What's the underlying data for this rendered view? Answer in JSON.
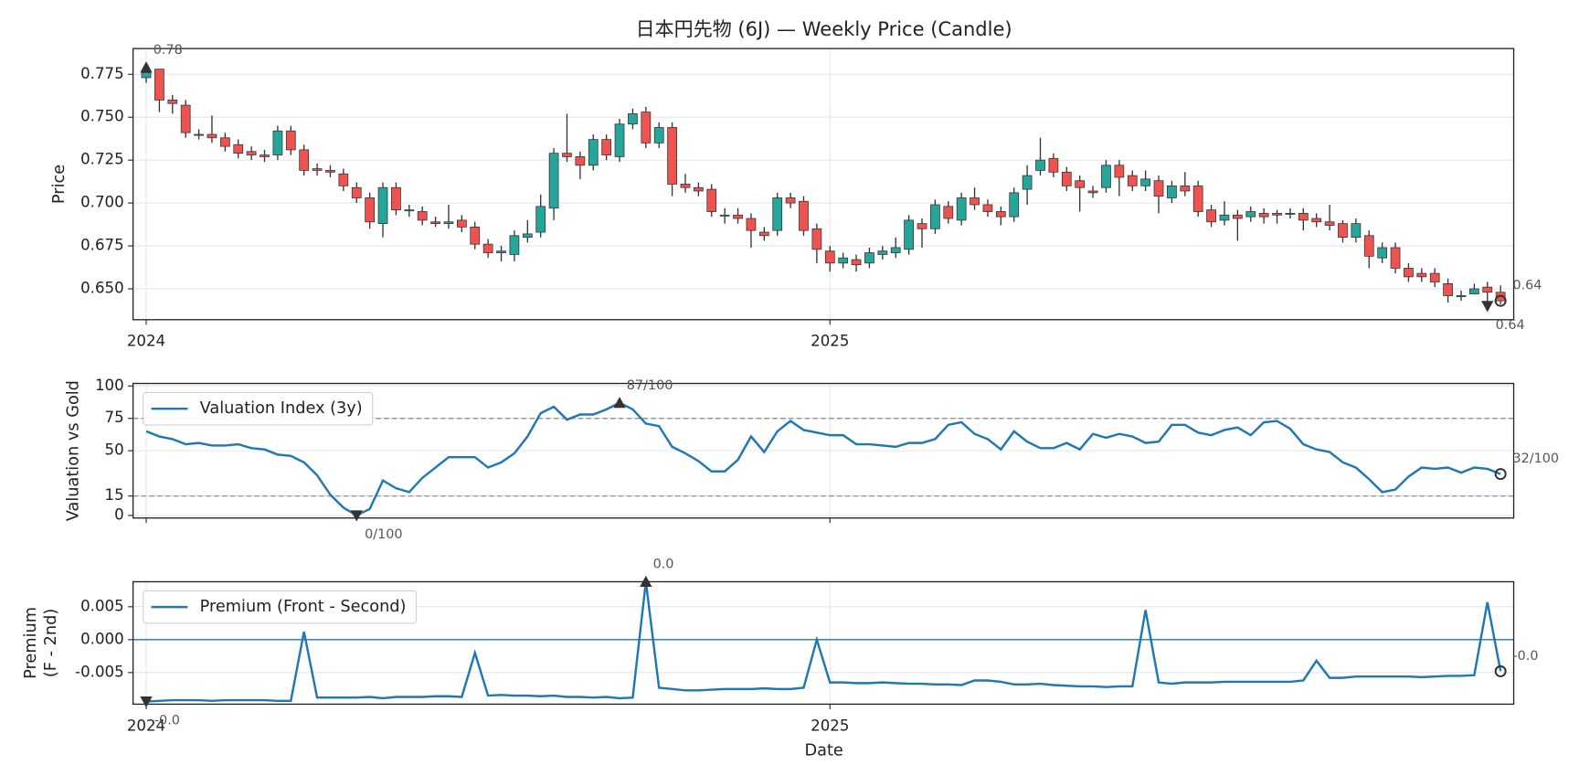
{
  "chart_data": [
    {
      "type": "candlestick",
      "title": "日本円先物 (6J) — Weekly Price (Candle)",
      "ylabel": [
        "Price"
      ],
      "categories": [
        "2024",
        null,
        null,
        null,
        null,
        null,
        null,
        null,
        null,
        null,
        null,
        null,
        null,
        null,
        null,
        null,
        null,
        null,
        null,
        null,
        null,
        null,
        null,
        null,
        null,
        null,
        null,
        null,
        null,
        null,
        null,
        null,
        null,
        null,
        null,
        null,
        null,
        null,
        null,
        null,
        null,
        null,
        null,
        null,
        null,
        null,
        null,
        null,
        null,
        null,
        null,
        null,
        "2025",
        null,
        null,
        null,
        null,
        null,
        null,
        null,
        null,
        null,
        null,
        null,
        null,
        null,
        null,
        null,
        null,
        null,
        null,
        null,
        null,
        null,
        null,
        null,
        null,
        null,
        null,
        null,
        null,
        null,
        null,
        null,
        null,
        null,
        null,
        null,
        null,
        null,
        null,
        null,
        null,
        null,
        null,
        null,
        null,
        null,
        null,
        null,
        null,
        null,
        null,
        null
      ],
      "open": [
        0.773,
        0.778,
        0.76,
        0.757,
        0.74,
        0.74,
        0.738,
        0.734,
        0.73,
        0.728,
        0.728,
        0.742,
        0.731,
        0.72,
        0.719,
        0.717,
        0.709,
        0.703,
        0.688,
        0.709,
        0.696,
        0.695,
        0.689,
        0.688,
        0.69,
        0.686,
        0.676,
        0.671,
        0.67,
        0.68,
        0.683,
        0.697,
        0.729,
        0.727,
        0.722,
        0.737,
        0.727,
        0.746,
        0.753,
        0.735,
        0.744,
        0.711,
        0.709,
        0.708,
        0.693,
        0.693,
        0.691,
        0.683,
        0.684,
        0.703,
        0.701,
        0.685,
        0.672,
        0.665,
        0.667,
        0.665,
        0.67,
        0.671,
        0.673,
        0.688,
        0.685,
        0.698,
        0.69,
        0.703,
        0.699,
        0.695,
        0.692,
        0.708,
        0.719,
        0.726,
        0.718,
        0.713,
        0.707,
        0.709,
        0.722,
        0.716,
        0.71,
        0.713,
        0.703,
        0.71,
        0.71,
        0.696,
        0.69,
        0.693,
        0.692,
        0.694,
        0.694,
        0.694,
        0.694,
        0.691,
        0.689,
        0.688,
        0.68,
        0.681,
        0.668,
        0.674,
        0.662,
        0.659,
        0.659,
        0.653,
        0.646,
        0.647,
        0.651,
        0.648
      ],
      "high": [
        0.779,
        0.778,
        0.763,
        0.76,
        0.743,
        0.751,
        0.741,
        0.737,
        0.733,
        0.731,
        0.745,
        0.745,
        0.734,
        0.723,
        0.722,
        0.72,
        0.712,
        0.706,
        0.712,
        0.712,
        0.699,
        0.698,
        0.692,
        0.699,
        0.693,
        0.689,
        0.679,
        0.675,
        0.684,
        0.69,
        0.705,
        0.732,
        0.752,
        0.73,
        0.74,
        0.74,
        0.749,
        0.755,
        0.756,
        0.747,
        0.747,
        0.717,
        0.712,
        0.711,
        0.697,
        0.697,
        0.694,
        0.686,
        0.706,
        0.706,
        0.704,
        0.688,
        0.675,
        0.671,
        0.67,
        0.674,
        0.675,
        0.68,
        0.693,
        0.691,
        0.702,
        0.701,
        0.706,
        0.709,
        0.702,
        0.698,
        0.709,
        0.722,
        0.738,
        0.729,
        0.721,
        0.716,
        0.71,
        0.725,
        0.725,
        0.719,
        0.719,
        0.716,
        0.713,
        0.718,
        0.713,
        0.699,
        0.701,
        0.696,
        0.698,
        0.697,
        0.696,
        0.697,
        0.697,
        0.694,
        0.699,
        0.69,
        0.691,
        0.684,
        0.677,
        0.677,
        0.665,
        0.662,
        0.662,
        0.656,
        0.649,
        0.653,
        0.654,
        0.652
      ],
      "low": [
        0.77,
        0.753,
        0.752,
        0.738,
        0.737,
        0.735,
        0.73,
        0.726,
        0.725,
        0.724,
        0.725,
        0.728,
        0.716,
        0.716,
        0.715,
        0.707,
        0.7,
        0.685,
        0.68,
        0.693,
        0.692,
        0.687,
        0.686,
        0.685,
        0.683,
        0.673,
        0.668,
        0.666,
        0.666,
        0.677,
        0.68,
        0.69,
        0.724,
        0.714,
        0.719,
        0.725,
        0.724,
        0.743,
        0.732,
        0.732,
        0.704,
        0.706,
        0.704,
        0.692,
        0.688,
        0.688,
        0.674,
        0.678,
        0.681,
        0.697,
        0.681,
        0.665,
        0.66,
        0.662,
        0.66,
        0.662,
        0.667,
        0.668,
        0.67,
        0.674,
        0.682,
        0.688,
        0.687,
        0.696,
        0.692,
        0.687,
        0.689,
        0.699,
        0.716,
        0.715,
        0.707,
        0.695,
        0.703,
        0.706,
        0.704,
        0.707,
        0.707,
        0.694,
        0.7,
        0.704,
        0.692,
        0.686,
        0.687,
        0.678,
        0.689,
        0.688,
        0.688,
        0.691,
        0.684,
        0.686,
        0.684,
        0.677,
        0.677,
        0.662,
        0.665,
        0.659,
        0.654,
        0.654,
        0.651,
        0.642,
        0.643,
        0.647,
        0.64,
        0.641
      ],
      "close": [
        0.776,
        0.76,
        0.758,
        0.741,
        0.74,
        0.738,
        0.733,
        0.729,
        0.728,
        0.727,
        0.742,
        0.731,
        0.719,
        0.719,
        0.718,
        0.71,
        0.703,
        0.689,
        0.709,
        0.696,
        0.696,
        0.69,
        0.688,
        0.689,
        0.686,
        0.676,
        0.671,
        0.672,
        0.681,
        0.682,
        0.698,
        0.729,
        0.727,
        0.722,
        0.737,
        0.728,
        0.746,
        0.752,
        0.735,
        0.744,
        0.711,
        0.709,
        0.707,
        0.695,
        0.693,
        0.691,
        0.684,
        0.681,
        0.703,
        0.7,
        0.684,
        0.673,
        0.665,
        0.668,
        0.664,
        0.671,
        0.672,
        0.674,
        0.69,
        0.685,
        0.699,
        0.691,
        0.703,
        0.699,
        0.695,
        0.692,
        0.706,
        0.716,
        0.725,
        0.718,
        0.71,
        0.709,
        0.706,
        0.722,
        0.715,
        0.71,
        0.714,
        0.704,
        0.71,
        0.707,
        0.695,
        0.689,
        0.693,
        0.691,
        0.695,
        0.692,
        0.693,
        0.694,
        0.69,
        0.689,
        0.687,
        0.68,
        0.688,
        0.669,
        0.674,
        0.662,
        0.657,
        0.657,
        0.654,
        0.646,
        0.646,
        0.65,
        0.648,
        0.643
      ],
      "up_color": "#26a69a",
      "down_color": "#ef5350",
      "edge_color": "#333333",
      "ylim": [
        0.632,
        0.79
      ],
      "yticks": [
        {
          "value": 0.65,
          "label": "0.650"
        },
        0.675,
        {
          "value": 0.7,
          "label": "0.700"
        },
        0.725,
        {
          "value": 0.75,
          "label": "0.750"
        },
        0.775
      ],
      "grid": true,
      "annotations": [
        {
          "label": "0.78",
          "at": "max"
        },
        {
          "label": "0.64",
          "at": "min"
        },
        {
          "label": "0.64",
          "at": "last"
        }
      ]
    },
    {
      "type": "line",
      "ylabel": [
        "Valuation vs Gold"
      ],
      "series": [
        {
          "name": "Valuation Index (3y)",
          "color": "#1f77b4",
          "values": [
            65,
            61,
            59,
            55,
            56,
            54,
            54,
            55,
            52,
            51,
            47,
            46,
            41,
            31,
            16,
            6,
            0,
            5,
            27,
            21,
            18,
            29,
            37,
            45,
            45,
            45,
            37,
            41,
            48,
            61,
            79,
            84,
            74,
            78,
            78,
            82,
            87,
            82,
            71,
            69,
            53,
            48,
            42,
            34,
            34,
            43,
            61,
            49,
            65,
            73,
            66,
            64,
            62,
            62,
            55,
            55,
            54,
            53,
            56,
            56,
            59,
            70,
            72,
            63,
            59,
            51,
            65,
            57,
            52,
            52,
            56,
            51,
            63,
            60,
            63,
            61,
            56,
            57,
            70,
            70,
            64,
            62,
            66,
            68,
            62,
            72,
            73,
            67,
            55,
            51,
            49,
            41,
            37,
            28,
            18,
            20,
            30,
            37,
            36,
            37,
            33,
            37,
            36,
            32
          ]
        }
      ],
      "ylim": [
        -2,
        102
      ],
      "yticks": [
        0,
        15,
        50,
        75,
        100
      ],
      "grid": true,
      "legend": "upper left",
      "hlines": [
        {
          "value": 75,
          "color": "#999999",
          "style": "dashed"
        },
        {
          "value": 15,
          "color": "#999999",
          "style": "dashed"
        }
      ],
      "annotations": [
        {
          "label": "87/100",
          "at": "max"
        },
        {
          "label": "0/100",
          "at": "min"
        },
        {
          "label": "32/100",
          "at": "last"
        }
      ]
    },
    {
      "type": "line",
      "ylabel": [
        "Premium",
        "(F - 2nd)"
      ],
      "xlabel": "Date",
      "categories": [
        "2024",
        null,
        null,
        null,
        null,
        null,
        null,
        null,
        null,
        null,
        null,
        null,
        null,
        null,
        null,
        null,
        null,
        null,
        null,
        null,
        null,
        null,
        null,
        null,
        null,
        null,
        null,
        null,
        null,
        null,
        null,
        null,
        null,
        null,
        null,
        null,
        null,
        null,
        null,
        null,
        null,
        null,
        null,
        null,
        null,
        null,
        null,
        null,
        null,
        null,
        null,
        null,
        "2025",
        null,
        null,
        null,
        null,
        null,
        null,
        null,
        null,
        null,
        null,
        null,
        null,
        null,
        null,
        null,
        null,
        null,
        null,
        null,
        null,
        null,
        null,
        null,
        null,
        null,
        null,
        null,
        null,
        null,
        null,
        null,
        null,
        null,
        null,
        null,
        null,
        null,
        null,
        null,
        null,
        null,
        null,
        null,
        null,
        null,
        null,
        null,
        null,
        null,
        null,
        null
      ],
      "series": [
        {
          "name": "Premium (Front - Second)",
          "color": "#1f77b4",
          "values": [
            -0.0094,
            -0.0093,
            -0.0092,
            -0.0092,
            -0.0092,
            -0.0093,
            -0.0092,
            -0.0092,
            -0.0092,
            -0.0092,
            -0.0093,
            -0.0093,
            0.0012,
            -0.0088,
            -0.0088,
            -0.0088,
            -0.0088,
            -0.0087,
            -0.0089,
            -0.0087,
            -0.0087,
            -0.0087,
            -0.0086,
            -0.0086,
            -0.0087,
            -0.002,
            -0.0085,
            -0.0084,
            -0.0085,
            -0.0085,
            -0.0086,
            -0.0085,
            -0.0087,
            -0.0087,
            -0.0088,
            -0.0087,
            -0.0089,
            -0.0088,
            0.0088,
            -0.0073,
            -0.0075,
            -0.0077,
            -0.0077,
            -0.0076,
            -0.0075,
            -0.0075,
            -0.0075,
            -0.0074,
            -0.0075,
            -0.0075,
            -0.0073,
            0.0,
            -0.0065,
            -0.0065,
            -0.0066,
            -0.0066,
            -0.0065,
            -0.0066,
            -0.0067,
            -0.0067,
            -0.0068,
            -0.0068,
            -0.0069,
            -0.0062,
            -0.0062,
            -0.0064,
            -0.0068,
            -0.0068,
            -0.0067,
            -0.0069,
            -0.007,
            -0.0071,
            -0.0071,
            -0.0072,
            -0.0071,
            -0.0071,
            0.0045,
            -0.0065,
            -0.0067,
            -0.0065,
            -0.0065,
            -0.0065,
            -0.0064,
            -0.0064,
            -0.0064,
            -0.0064,
            -0.0064,
            -0.0064,
            -0.0062,
            -0.0032,
            -0.0058,
            -0.0058,
            -0.0056,
            -0.0056,
            -0.0056,
            -0.0056,
            -0.0056,
            -0.0057,
            -0.0056,
            -0.0055,
            -0.0055,
            -0.0054,
            0.0057,
            -0.0048
          ]
        }
      ],
      "ylim": [
        -0.0098,
        0.0088
      ],
      "yticks": [
        -0.005,
        {
          "value": 0,
          "label": "0.000"
        },
        0.005
      ],
      "grid": true,
      "legend": "upper left",
      "hlines": [
        {
          "value": 0,
          "color": "#1f77b4",
          "style": "solid"
        }
      ],
      "annotations": [
        {
          "label": "0.0",
          "at": "max"
        },
        {
          "label": "-0.0",
          "at": "min"
        },
        {
          "label": "-0.0",
          "at": "last"
        }
      ]
    }
  ]
}
